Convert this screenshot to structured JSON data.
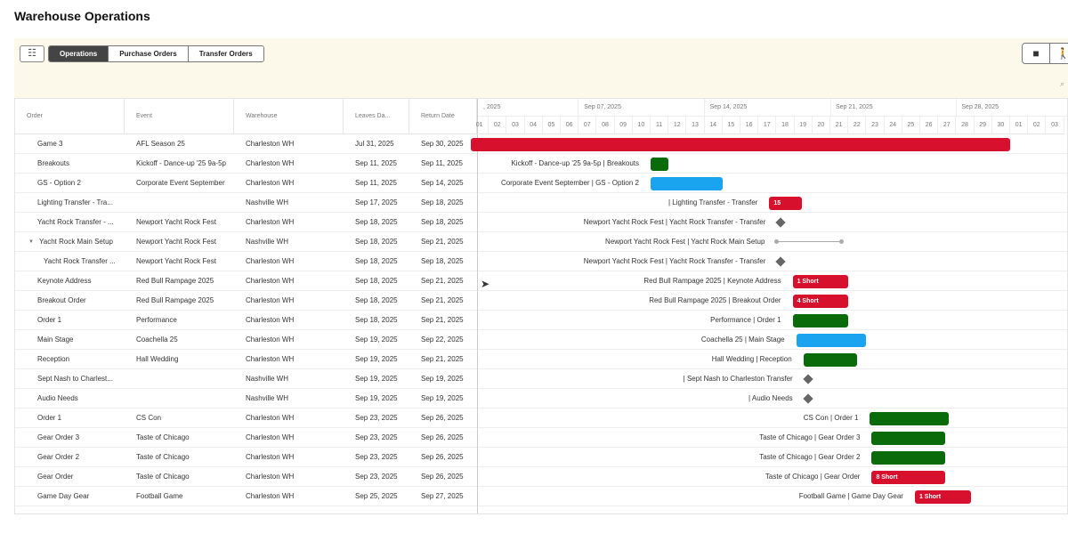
{
  "header": {
    "title": "Warehouse Operations"
  },
  "toolbar": {
    "filter_icon": "sliders-icon",
    "tabs": [
      {
        "label": "Operations",
        "active": true
      },
      {
        "label": "Purchase Orders",
        "active": false
      },
      {
        "label": "Transfer Orders",
        "active": false
      }
    ],
    "right_icons": [
      "archive-download-icon",
      "person-walking-icon"
    ],
    "zoom_icon": "zoom-icon"
  },
  "columns": [
    "Order",
    "Event",
    "Warehouse",
    "Leaves Da...",
    "Return Date"
  ],
  "timeline": {
    "weeks": [
      ", 2025",
      "Sep 07, 2025",
      "Sep 14, 2025",
      "Sep 21, 2025",
      "Sep 28, 2025"
    ],
    "days": [
      "01",
      "02",
      "03",
      "04",
      "05",
      "06",
      "07",
      "08",
      "09",
      "10",
      "11",
      "12",
      "13",
      "14",
      "15",
      "16",
      "17",
      "18",
      "19",
      "20",
      "21",
      "22",
      "23",
      "24",
      "25",
      "26",
      "27",
      "28",
      "29",
      "30",
      "01",
      "02",
      "03"
    ]
  },
  "colors": {
    "red": "#d7102e",
    "green": "#0a6b0a",
    "blue": "#1aa3ef",
    "milestone": "#666666"
  },
  "rows": [
    {
      "order": "Game 3",
      "event": "AFL Season 25",
      "warehouse": "Charleston WH",
      "leaves": "Jul 31, 2025",
      "returns": "Sep 30, 2025",
      "type": "bar",
      "color": "red",
      "label": "",
      "badge": "",
      "s": 1,
      "e": 30
    },
    {
      "order": "Breakouts",
      "event": "Kickoff - Dance-up '25 9a-5p",
      "warehouse": "Charleston WH",
      "leaves": "Sep 11, 2025",
      "returns": "Sep 11, 2025",
      "type": "bar",
      "color": "green",
      "label": "Kickoff - Dance-up '25 9a-5p | Breakouts",
      "badge": "",
      "s": 11,
      "e": 11
    },
    {
      "order": "GS - Option 2",
      "event": "Corporate Event September",
      "warehouse": "Charleston WH",
      "leaves": "Sep 11, 2025",
      "returns": "Sep 14, 2025",
      "type": "bar",
      "color": "blue",
      "label": "Corporate Event September | GS - Option 2",
      "badge": "",
      "s": 11,
      "e": 14
    },
    {
      "order": "Lighting Transfer - Tra...",
      "event": "",
      "warehouse": "Nashville WH",
      "leaves": "Sep 17, 2025",
      "returns": "Sep 18, 2025",
      "type": "bar",
      "color": "red",
      "label": "| Lighting Transfer - Transfer",
      "badge": "15",
      "s": 17.6,
      "e": 18.4
    },
    {
      "order": "Yacht Rock Transfer - ...",
      "event": "Newport Yacht Rock Fest",
      "warehouse": "Charleston WH",
      "leaves": "Sep 18, 2025",
      "returns": "Sep 18, 2025",
      "type": "milestone",
      "color": "milestone",
      "label": "Newport Yacht Rock Fest | Yacht Rock Transfer - Transfer",
      "badge": "",
      "s": 18,
      "e": 18
    },
    {
      "order": "Yacht Rock Main Setup",
      "event": "Newport Yacht Rock Fest",
      "warehouse": "Nashville WH",
      "leaves": "Sep 18, 2025",
      "returns": "Sep 21, 2025",
      "type": "summary",
      "color": "",
      "label": "Newport Yacht Rock Fest | Yacht Rock Main Setup",
      "badge": "",
      "expanded": true,
      "s": 18,
      "e": 21.6
    },
    {
      "order": "Yacht Rock Transfer ...",
      "event": "Newport Yacht Rock Fest",
      "warehouse": "Charleston WH",
      "leaves": "Sep 18, 2025",
      "returns": "Sep 18, 2025",
      "type": "milestone",
      "color": "milestone",
      "label": "Newport Yacht Rock Fest | Yacht Rock Transfer - Transfer",
      "badge": "",
      "child": true,
      "s": 18,
      "e": 18
    },
    {
      "order": "Keynote Address",
      "event": "Red Bull Rampage 2025",
      "warehouse": "Charleston WH",
      "leaves": "Sep 18, 2025",
      "returns": "Sep 21, 2025",
      "type": "bar",
      "color": "red",
      "label": "Red Bull Rampage 2025 | Keynote Address",
      "badge": "1 Short",
      "s": 18.9,
      "e": 21
    },
    {
      "order": "Breakout Order",
      "event": "Red Bull Rampage 2025",
      "warehouse": "Charleston WH",
      "leaves": "Sep 18, 2025",
      "returns": "Sep 21, 2025",
      "type": "bar",
      "color": "red",
      "label": "Red Bull Rampage 2025 | Breakout Order",
      "badge": "4 Short",
      "s": 18.9,
      "e": 21
    },
    {
      "order": "Order 1",
      "event": "Performance",
      "warehouse": "Charleston WH",
      "leaves": "Sep 18, 2025",
      "returns": "Sep 21, 2025",
      "type": "bar",
      "color": "green",
      "label": "Performance | Order 1",
      "badge": "",
      "s": 18.9,
      "e": 21
    },
    {
      "order": "Main Stage",
      "event": "Coachella 25",
      "warehouse": "Charleston WH",
      "leaves": "Sep 19, 2025",
      "returns": "Sep 22, 2025",
      "type": "bar",
      "color": "blue",
      "label": "Coachella 25 | Main Stage",
      "badge": "",
      "s": 19.1,
      "e": 22
    },
    {
      "order": "Reception",
      "event": "Hall Wedding",
      "warehouse": "Charleston WH",
      "leaves": "Sep 19, 2025",
      "returns": "Sep 21, 2025",
      "type": "bar",
      "color": "green",
      "label": "Hall Wedding | Reception",
      "badge": "",
      "s": 19.5,
      "e": 21.5
    },
    {
      "order": "Sept Nash to Charlest...",
      "event": "",
      "warehouse": "Nashville WH",
      "leaves": "Sep 19, 2025",
      "returns": "Sep 19, 2025",
      "type": "milestone",
      "color": "milestone",
      "label": "| Sept Nash to Charleston Transfer",
      "badge": "",
      "s": 19.5,
      "e": 19.5
    },
    {
      "order": "Audio Needs",
      "event": "",
      "warehouse": "Nashville WH",
      "leaves": "Sep 19, 2025",
      "returns": "Sep 19, 2025",
      "type": "milestone",
      "color": "milestone",
      "label": "| Audio Needs",
      "badge": "",
      "s": 19.5,
      "e": 19.5
    },
    {
      "order": "Order 1",
      "event": "CS Con",
      "warehouse": "Charleston WH",
      "leaves": "Sep 23, 2025",
      "returns": "Sep 26, 2025",
      "type": "bar",
      "color": "green",
      "label": "CS Con | Order 1",
      "badge": "",
      "s": 23.2,
      "e": 26.6
    },
    {
      "order": "Gear Order 3",
      "event": "Taste of Chicago",
      "warehouse": "Charleston WH",
      "leaves": "Sep 23, 2025",
      "returns": "Sep 26, 2025",
      "type": "bar",
      "color": "green",
      "label": "Taste of Chicago | Gear Order 3",
      "badge": "",
      "s": 23.3,
      "e": 26.4
    },
    {
      "order": "Gear Order 2",
      "event": "Taste of Chicago",
      "warehouse": "Charleston WH",
      "leaves": "Sep 23, 2025",
      "returns": "Sep 26, 2025",
      "type": "bar",
      "color": "green",
      "label": "Taste of Chicago | Gear Order 2",
      "badge": "",
      "s": 23.3,
      "e": 26.4
    },
    {
      "order": "Gear Order",
      "event": "Taste of Chicago",
      "warehouse": "Charleston WH",
      "leaves": "Sep 23, 2025",
      "returns": "Sep 26, 2025",
      "type": "bar",
      "color": "red",
      "label": "Taste of Chicago | Gear Order",
      "badge": "8 Short",
      "s": 23.3,
      "e": 26.4
    },
    {
      "order": "Game Day Gear",
      "event": "Football Game",
      "warehouse": "Charleston WH",
      "leaves": "Sep 25, 2025",
      "returns": "Sep 27, 2025",
      "type": "bar",
      "color": "red",
      "label": "Football Game | Game Day Gear",
      "badge": "1 Short",
      "s": 25.7,
      "e": 27.8
    }
  ]
}
